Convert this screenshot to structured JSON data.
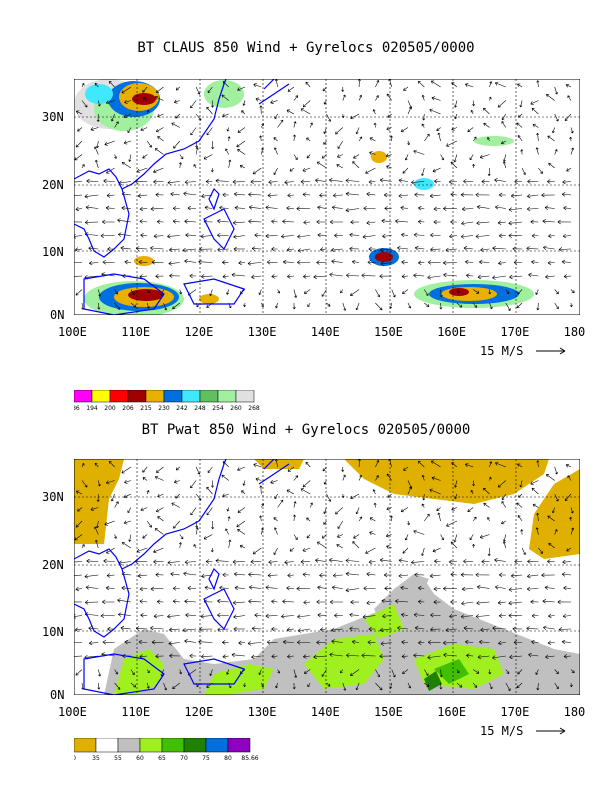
{
  "top_panel": {
    "title": "BT CLAUS 850 Wind + Gyrelocs 020505/0000",
    "x_ticks": [
      "100E",
      "110E",
      "120E",
      "130E",
      "140E",
      "150E",
      "160E",
      "170E",
      "180"
    ],
    "y_ticks": [
      "30N",
      "20N",
      "10N",
      "0N"
    ],
    "vector_ref": "15 M/S",
    "colorbar": {
      "colors": [
        "#ff00ff",
        "#ffff00",
        "#ff0000",
        "#a00000",
        "#e8b000",
        "#0070e0",
        "#40e8ff",
        "#60c060",
        "#a0f0a0",
        "#e0e0e0"
      ],
      "labels": [
        "186",
        "194",
        "200",
        "206",
        "215",
        "230",
        "242",
        "248",
        "254",
        "260",
        "268"
      ]
    }
  },
  "bottom_panel": {
    "title": "BT Pwat 850 Wind + Gyrelocs 020505/0000",
    "x_ticks": [
      "100E",
      "110E",
      "120E",
      "130E",
      "140E",
      "150E",
      "160E",
      "170E",
      "180"
    ],
    "y_ticks": [
      "30N",
      "20N",
      "10N",
      "0N"
    ],
    "vector_ref": "15 M/S",
    "colorbar": {
      "colors": [
        "#e0b000",
        "#ffffff",
        "#c0c0c0",
        "#a0f020",
        "#40c000",
        "#208000",
        "#0070e0",
        "#9000c0"
      ],
      "labels": [
        "0",
        "35",
        "55",
        "60",
        "65",
        "70",
        "75",
        "80",
        "85.66"
      ]
    }
  },
  "colors": {
    "coast": "#0000ff",
    "frame": "#000000"
  }
}
